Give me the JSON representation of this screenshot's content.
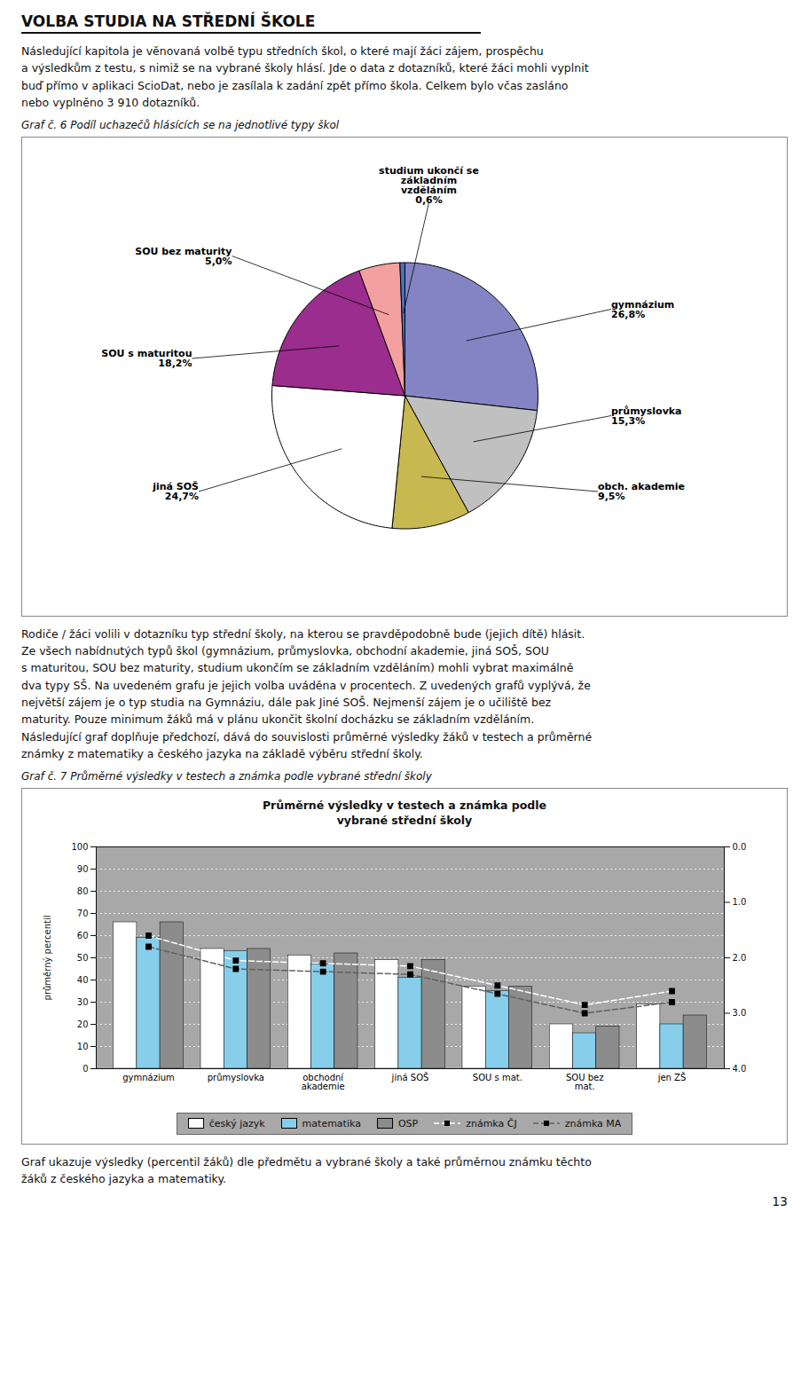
{
  "title": "VOLBA STUDIA NA STŘEDNÍ ŠKOLE",
  "annotations": [
    "Následující kapitola je věnovaná volbě typu středních škol, o které mají žáci zájem, prospěchu\na výsledkům z testu, s nimiž se na vybrané školy hlásí. Jde o data z dotazníků, které žáci mohli vyplnit\nbuď přímo v aplikaci ScioDat, nebo je zasílala k zadání zpět přímo škola. Celkem bylo včas zasláno\nnebo vyplněno 3 910 dotazníků.",
    "Rodiče / žáci volili v dotazníku typ střední školy, na kterou se pravděpodobně bude (jejich dítě) hlásit.\nZe všech nabídnutých typů škol (gymnázium, průmyslovka, obchodní akademie, jiná SOŠ, SOU\ns maturitou, SOU bez maturity, studium ukončím se základním vzděláním) mohli vybrat maximálně\ndva typy SŠ. Na uvedeném grafu je jejich volba uváděna v procentech. Z uvedených grafů vyplývá, že\nnejvětší zájem je o typ studia na Gymnáziu, dále pak Jiné SOŠ. Nejmenší zájem je o učiliště bez\nmaturity. Pouze minimum žáků má v plánu ukončit školní docházku se základním vzděláním.\nNásledující graf doplňuje předchozí, dává do souvislosti průměrné výsledky žáků v testech a průměrné\nznámky z matematiky a českého jazyka na základě výběru střední školy.",
    "Graf ukazuje výsledky (percentil žáků) dle předmětu a vybrané školy a také průměrnou známku těchto\nžáků z českého jazyka a matematiky.",
    "13"
  ],
  "chart_data": [
    {
      "type": "pie",
      "title": "Graf č. 6 Podíl uchazečů hlásících se na jednotlivé typy škol",
      "categories": [
        "gymnázium",
        "průmyslovka",
        "obch. akademie",
        "jiná SOŠ",
        "SOU s maturitou",
        "SOU bez maturity",
        "studium ukončí se\nzákladním\nvzděláním"
      ],
      "values": [
        26.8,
        15.3,
        9.5,
        24.7,
        18.2,
        5.0,
        0.6
      ],
      "value_labels": [
        "26,8%",
        "15,3%",
        "9,5%",
        "24,7%",
        "18,2%",
        "5,0%",
        "0,6%"
      ],
      "colors": [
        "#8484C4",
        "#C0C0C0",
        "#C8B850",
        "#FFFFFF",
        "#9B2D8E",
        "#F4A0A0",
        "#4472C4"
      ],
      "data_labels": true
    },
    {
      "type": "bar",
      "title": "Graf č. 7 Průměrné výsledky v testech a známka podle vybrané střední školy",
      "subtitle": "Průměrné výsledky v testech a známka podle\nvybrané střední školy",
      "categories": [
        "gymnázium",
        "průmyslovka",
        "obchodní\nakademie",
        "jiná SOŠ",
        "SOU s mat.",
        "SOU bez\nmat.",
        "jen ZŠ"
      ],
      "series": [
        {
          "name": "český jazyk",
          "type": "bar",
          "color": "#FFFFFF",
          "values": [
            66,
            54,
            51,
            49,
            37,
            20,
            29
          ]
        },
        {
          "name": "matematika",
          "type": "bar",
          "color": "#87CEEB",
          "values": [
            59,
            53,
            47,
            41,
            35,
            16,
            20
          ]
        },
        {
          "name": "OSP",
          "type": "bar",
          "color": "#8C8C8C",
          "values": [
            66,
            54,
            52,
            49,
            37,
            19,
            24
          ]
        },
        {
          "name": "známka ČJ",
          "type": "line",
          "axis": "y2",
          "color": "#FFFFFF",
          "marker": "square",
          "line_style": "dashed",
          "values": [
            1.6,
            2.05,
            2.1,
            2.15,
            2.5,
            2.85,
            2.6
          ]
        },
        {
          "name": "známka MA",
          "type": "line",
          "axis": "y2",
          "color": "#606060",
          "marker": "square",
          "line_style": "dashed",
          "values": [
            1.8,
            2.2,
            2.25,
            2.3,
            2.65,
            3.0,
            2.8
          ]
        }
      ],
      "ylabel": "průměrný percentil",
      "ylim": [
        0,
        100
      ],
      "yticks": [
        0,
        10,
        20,
        30,
        40,
        50,
        60,
        70,
        80,
        90,
        100
      ],
      "y2lim": [
        4,
        0
      ],
      "y2ticks": [
        0,
        1,
        2,
        3,
        4
      ],
      "grid": true,
      "legend": "bottom"
    }
  ]
}
